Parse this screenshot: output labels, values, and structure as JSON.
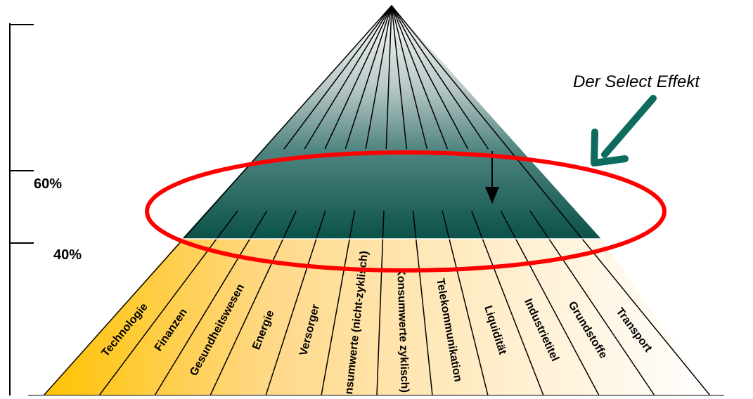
{
  "callout": {
    "text": "Der Select Effekt"
  },
  "scale": {
    "label_60": "60%",
    "label_40": "40%"
  },
  "sectors": [
    {
      "label": "Technologie"
    },
    {
      "label": "Finanzen"
    },
    {
      "label": "Gesundheitswesen"
    },
    {
      "label": "Energie"
    },
    {
      "label": "Versorger"
    },
    {
      "label": "Konsumwerte (nicht-zyklisch)"
    },
    {
      "label": "Konsumwerte zyklisch)"
    },
    {
      "label": "Telekommunikation"
    },
    {
      "label": "Liquidität"
    },
    {
      "label": "Industrietitel"
    },
    {
      "label": "Grundstoffe"
    },
    {
      "label": "Transport"
    }
  ],
  "colors": {
    "apex_top": "#ffffff",
    "select_band": "#0e5a52",
    "ring": "#ff0000",
    "arrow": "#0e6b60",
    "base_left": "#ffc200",
    "base_right": "#ffffff"
  }
}
